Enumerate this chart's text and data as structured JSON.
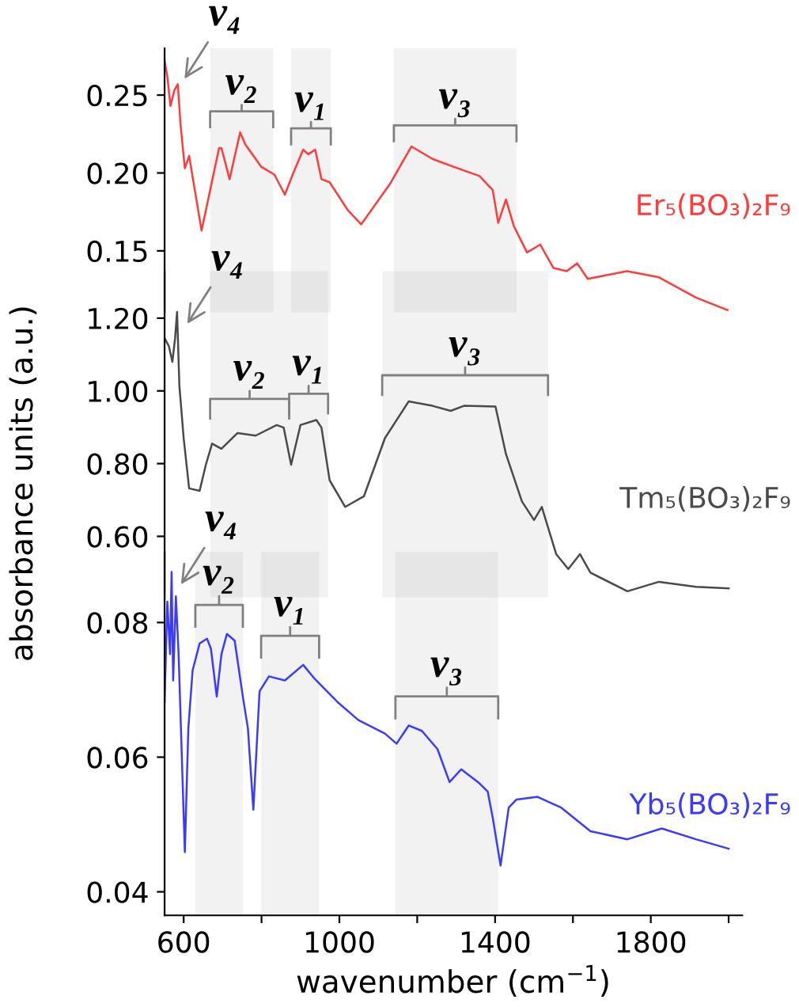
{
  "chart_data": [
    {
      "type": "line",
      "xlim": [
        551,
        2035
      ],
      "ylim": [
        0.11,
        0.28
      ],
      "tick_labels": "y",
      "legend": false,
      "grid": false,
      "yticks": [
        {
          "value": 0.15,
          "label": "0.15"
        },
        {
          "value": 0.2,
          "label": "0.20"
        },
        {
          "value": 0.25,
          "label": "0.25"
        }
      ],
      "series": [
        {
          "name": "Er₅(BO₃)₂F₉",
          "color": "#ff3b3b",
          "x": [
            551,
            558,
            566,
            576,
            585,
            592,
            603,
            614,
            646,
            668,
            691,
            697,
            718,
            745,
            759,
            785,
            799,
            833,
            860,
            880,
            907,
            920,
            938,
            954,
            975,
            1022,
            1056,
            1130,
            1185,
            1239,
            1293,
            1360,
            1394,
            1408,
            1428,
            1448,
            1482,
            1516,
            1550,
            1584,
            1611,
            1638,
            1739,
            1821,
            1916,
            1997
          ],
          "values": [
            0.272,
            0.262,
            0.243,
            0.253,
            0.257,
            0.231,
            0.203,
            0.211,
            0.163,
            0.189,
            0.216,
            0.216,
            0.196,
            0.226,
            0.218,
            0.209,
            0.204,
            0.199,
            0.186,
            0.199,
            0.215,
            0.212,
            0.215,
            0.196,
            0.194,
            0.176,
            0.167,
            0.193,
            0.217,
            0.209,
            0.204,
            0.198,
            0.189,
            0.168,
            0.183,
            0.166,
            0.149,
            0.154,
            0.139,
            0.137,
            0.142,
            0.132,
            0.137,
            0.133,
            0.12,
            0.112
          ]
        }
      ],
      "annotations": [
        {
          "text": "ν₄",
          "x": 596,
          "y": 0.258
        }
      ],
      "bands": [
        {
          "axis": "x",
          "from": 668,
          "to": 830,
          "label": "ν₂"
        },
        {
          "axis": "x",
          "from": 876,
          "to": 978,
          "label": "ν₁"
        },
        {
          "axis": "x",
          "from": 1140,
          "to": 1455,
          "label": "ν₃"
        }
      ]
    },
    {
      "type": "line",
      "xlim": [
        551,
        2035
      ],
      "ylim": [
        0.43,
        1.33
      ],
      "tick_labels": "y",
      "legend": false,
      "grid": false,
      "ylabel": "absorbance units (a.u.)",
      "yticks": [
        {
          "value": 0.6,
          "label": "0.60"
        },
        {
          "value": 0.8,
          "label": "0.80"
        },
        {
          "value": 1.0,
          "label": "1.00"
        },
        {
          "value": 1.2,
          "label": "1.20"
        }
      ],
      "series": [
        {
          "name": "Tm₅(BO₃)₂F₉",
          "color": "#4a4a4a",
          "x": [
            551,
            562,
            571,
            578,
            583,
            589,
            600,
            614,
            641,
            657,
            673,
            697,
            738,
            785,
            839,
            857,
            876,
            900,
            941,
            954,
            975,
            1015,
            1063,
            1117,
            1178,
            1239,
            1286,
            1320,
            1401,
            1428,
            1469,
            1500,
            1520,
            1557,
            1588,
            1618,
            1645,
            1740,
            1821,
            1916,
            2000
          ],
          "values": [
            1.145,
            1.123,
            1.08,
            1.145,
            1.217,
            1.014,
            0.87,
            0.732,
            0.725,
            0.797,
            0.855,
            0.841,
            0.884,
            0.877,
            0.906,
            0.899,
            0.797,
            0.906,
            0.92,
            0.899,
            0.754,
            0.681,
            0.71,
            0.87,
            0.971,
            0.959,
            0.945,
            0.959,
            0.957,
            0.826,
            0.696,
            0.645,
            0.681,
            0.551,
            0.51,
            0.551,
            0.5,
            0.449,
            0.475,
            0.461,
            0.457
          ]
        }
      ],
      "annotations": [
        {
          "text": "ν₄",
          "x": 603,
          "y": 1.174
        }
      ],
      "bands": [
        {
          "axis": "x",
          "from": 668,
          "to": 871,
          "label": "ν₂"
        },
        {
          "axis": "x",
          "from": 871,
          "to": 971,
          "label": "ν₁"
        },
        {
          "axis": "x",
          "from": 1110,
          "to": 1536,
          "label": "ν₃"
        }
      ]
    },
    {
      "type": "line",
      "xlim": [
        551,
        2035
      ],
      "ylim": [
        0.0365,
        0.0905
      ],
      "legend": false,
      "grid": false,
      "xlabel": "wavenumber (cm$^{−1}$)",
      "xticks": [
        600,
        {
          "value": 800,
          "label": null
        },
        1000,
        {
          "value": 1200,
          "label": null
        },
        1400,
        {
          "value": 1600,
          "label": null
        },
        1800,
        {
          "value": 2000,
          "label": null
        }
      ],
      "yticks": [
        {
          "value": 0.04,
          "label": "0.04"
        },
        {
          "value": 0.06,
          "label": "0.06"
        },
        {
          "value": 0.08,
          "label": "0.08"
        }
      ],
      "series": [
        {
          "name": "Yb₅(BO₃)₂F₉",
          "color": "#3b3bff",
          "x": [
            551,
            558,
            565,
            569,
            573,
            580,
            587,
            603,
            612,
            623,
            641,
            660,
            670,
            685,
            697,
            711,
            731,
            752,
            765,
            779,
            795,
            819,
            860,
            907,
            934,
            995,
            1049,
            1117,
            1147,
            1178,
            1212,
            1252,
            1283,
            1313,
            1360,
            1381,
            1394,
            1414,
            1435,
            1455,
            1509,
            1570,
            1645,
            1740,
            1828,
            1916,
            2000
          ],
          "values": [
            0.0682,
            0.0831,
            0.0753,
            0.0875,
            0.0714,
            0.0839,
            0.0753,
            0.0459,
            0.0643,
            0.0729,
            0.0769,
            0.0776,
            0.0761,
            0.069,
            0.0753,
            0.0783,
            0.0773,
            0.069,
            0.0643,
            0.0522,
            0.0698,
            0.072,
            0.0714,
            0.0737,
            0.0718,
            0.0682,
            0.0655,
            0.0635,
            0.062,
            0.0647,
            0.0639,
            0.0612,
            0.0563,
            0.0582,
            0.0561,
            0.0549,
            0.051,
            0.0439,
            0.0525,
            0.0537,
            0.0541,
            0.0525,
            0.049,
            0.0478,
            0.0494,
            0.0478,
            0.0464
          ]
        }
      ],
      "annotations": [
        {
          "text": "ν₄",
          "x": 587,
          "y": 0.0851
        }
      ],
      "bands": [
        {
          "axis": "x",
          "from": 630,
          "to": 752,
          "label": "ν₂"
        },
        {
          "axis": "x",
          "from": 799,
          "to": 948,
          "label": "ν₁"
        },
        {
          "axis": "x",
          "from": 1144,
          "to": 1408,
          "label": "ν₃"
        }
      ]
    }
  ]
}
